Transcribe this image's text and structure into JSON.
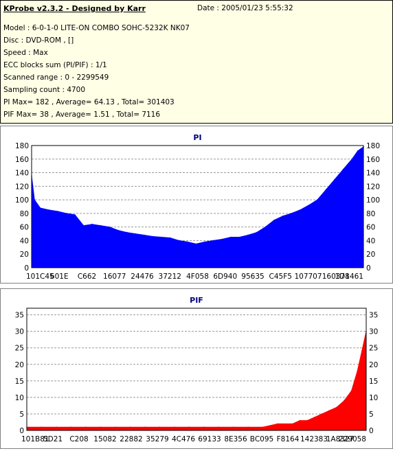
{
  "header": {
    "title": "KProbe v2.3.2 - Designed by Karr",
    "date": "Date : 2005/01/23 5:55:32",
    "lines": [
      "Model : 6-0-1-0 LITE-ON COMBO SOHC-5232K NK07",
      "Disc : DVD-ROM ,  []",
      "Speed : Max",
      "ECC blocks sum (PI/PIF) : 1/1",
      "Scanned range : 0 - 2299549",
      "Sampling count : 4700",
      "PI Max= 182 , Average= 64.13 , Total= 301403",
      "PIF Max= 38 , Average= 1.51 , Total= 7116"
    ]
  },
  "colors": {
    "pi": "#0000ff",
    "pif": "#ff0000",
    "grid": "#999999",
    "header_bg": "#ffffe6"
  },
  "chart_data": [
    {
      "type": "area",
      "title": "PI",
      "x_tick_labels": [
        "101C45",
        "601E",
        "C662",
        "16077",
        "24476",
        "37212",
        "4F058",
        "6D940",
        "95635",
        "C45F5",
        "107707",
        "160378",
        "1D1461"
      ],
      "ylim": [
        0,
        180
      ],
      "y_ticks": [
        0,
        20,
        40,
        60,
        80,
        100,
        120,
        140,
        160,
        180
      ],
      "grid": true,
      "x_range": [
        0,
        2299549
      ],
      "x": [
        0,
        20000,
        60000,
        120000,
        180000,
        240000,
        300000,
        360000,
        420000,
        480000,
        540000,
        600000,
        660000,
        720000,
        780000,
        840000,
        900000,
        960000,
        1020000,
        1080000,
        1140000,
        1200000,
        1260000,
        1320000,
        1380000,
        1440000,
        1500000,
        1560000,
        1620000,
        1680000,
        1740000,
        1800000,
        1860000,
        1920000,
        1980000,
        2040000,
        2100000,
        2160000,
        2220000,
        2260000,
        2299549
      ],
      "values": [
        135,
        100,
        88,
        85,
        83,
        80,
        78,
        62,
        64,
        62,
        60,
        55,
        52,
        50,
        48,
        46,
        45,
        44,
        40,
        38,
        35,
        38,
        40,
        42,
        45,
        45,
        48,
        52,
        60,
        70,
        76,
        80,
        85,
        92,
        100,
        115,
        130,
        145,
        160,
        172,
        178
      ]
    },
    {
      "type": "area",
      "title": "PIF",
      "x_tick_labels": [
        "101B81",
        "5D21",
        "C208",
        "15082",
        "22882",
        "35279",
        "4C476",
        "69133",
        "8E356",
        "BC095",
        "F8164",
        "142383",
        "1A8327",
        "229058"
      ],
      "ylim": [
        0,
        37
      ],
      "y_ticks": [
        0,
        5,
        10,
        15,
        20,
        25,
        30,
        35
      ],
      "grid": true,
      "x_range": [
        0,
        2299549
      ],
      "x": [
        0,
        100000,
        200000,
        300000,
        400000,
        500000,
        600000,
        700000,
        800000,
        900000,
        1000000,
        1100000,
        1200000,
        1300000,
        1400000,
        1500000,
        1600000,
        1700000,
        1800000,
        1850000,
        1900000,
        1950000,
        2000000,
        2050000,
        2100000,
        2150000,
        2200000,
        2240000,
        2270000,
        2299549
      ],
      "values": [
        1,
        1,
        1,
        1,
        1,
        1,
        1,
        1,
        1,
        1,
        1,
        1,
        1,
        1,
        1,
        1,
        1,
        2,
        2,
        3,
        3,
        4,
        5,
        6,
        7,
        9,
        12,
        18,
        24,
        30
      ]
    }
  ]
}
